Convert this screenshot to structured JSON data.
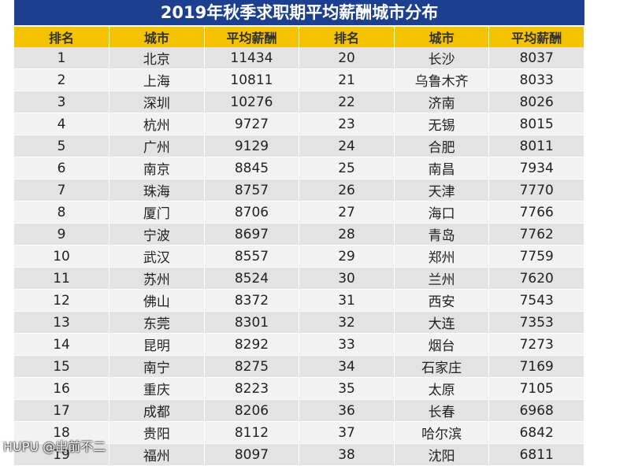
{
  "header": {
    "title": "2019年秋季求职期平均薪酬城市分布"
  },
  "table": {
    "columns": [
      "排名",
      "城市",
      "平均薪酬",
      "排名",
      "城市",
      "平均薪酬"
    ],
    "rows": [
      [
        1,
        "北京",
        11434,
        20,
        "长沙",
        8037
      ],
      [
        2,
        "上海",
        10811,
        21,
        "乌鲁木齐",
        8033
      ],
      [
        3,
        "深圳",
        10276,
        22,
        "济南",
        8026
      ],
      [
        4,
        "杭州",
        9727,
        23,
        "无锡",
        8015
      ],
      [
        5,
        "广州",
        9129,
        24,
        "合肥",
        8011
      ],
      [
        6,
        "南京",
        8845,
        25,
        "南昌",
        7934
      ],
      [
        7,
        "珠海",
        8757,
        26,
        "天津",
        7770
      ],
      [
        8,
        "厦门",
        8706,
        27,
        "海口",
        7766
      ],
      [
        9,
        "宁波",
        8697,
        28,
        "青岛",
        7762
      ],
      [
        10,
        "武汉",
        8557,
        29,
        "郑州",
        7759
      ],
      [
        11,
        "苏州",
        8524,
        30,
        "兰州",
        7620
      ],
      [
        12,
        "佛山",
        8372,
        31,
        "西安",
        7543
      ],
      [
        13,
        "东莞",
        8301,
        32,
        "大连",
        7353
      ],
      [
        14,
        "昆明",
        8292,
        33,
        "烟台",
        7273
      ],
      [
        15,
        "南宁",
        8275,
        34,
        "石家庄",
        7169
      ],
      [
        16,
        "重庆",
        8223,
        35,
        "太原",
        7105
      ],
      [
        17,
        "成都",
        8206,
        36,
        "长春",
        6968
      ],
      [
        18,
        "贵阳",
        8112,
        37,
        "哈尔滨",
        6842
      ],
      [
        19,
        "福州",
        8097,
        38,
        "沈阳",
        6811
      ]
    ]
  },
  "watermark": {
    "text": "HUPU @出前不二"
  }
}
